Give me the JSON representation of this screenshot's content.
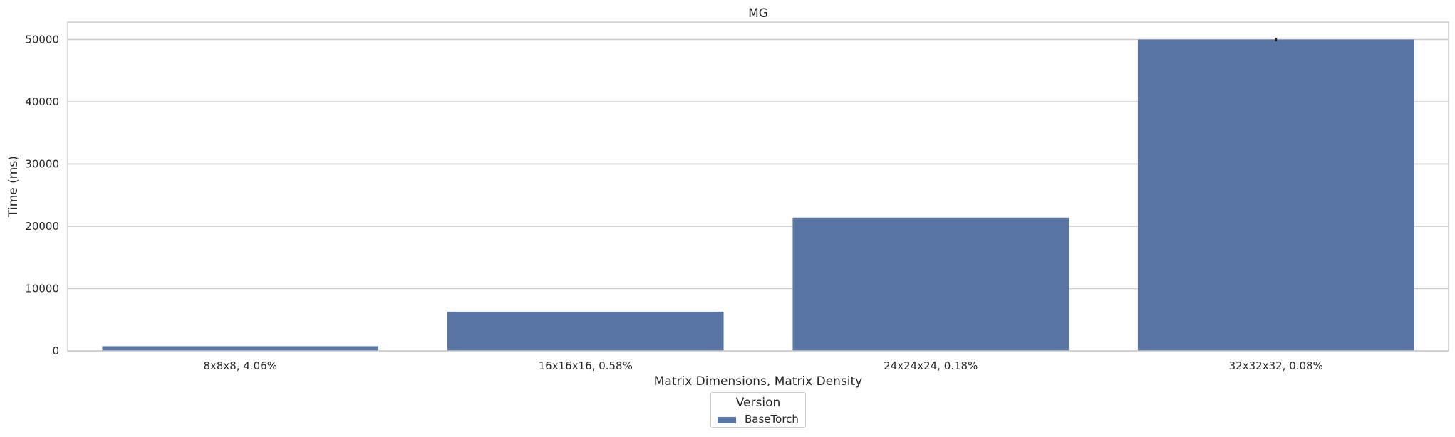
{
  "chart_data": {
    "type": "bar",
    "title": "MG",
    "xlabel": "Matrix Dimensions, Matrix Density",
    "ylabel": "Time (ms)",
    "categories": [
      "8x8x8, 4.06%",
      "16x16x16, 0.58%",
      "24x24x24, 0.18%",
      "32x32x32, 0.08%"
    ],
    "series": [
      {
        "name": "BaseTorch",
        "values": [
          750,
          6300,
          21400,
          50000
        ],
        "error": [
          0,
          0,
          0,
          300
        ]
      }
    ],
    "ylim": [
      0,
      52800
    ],
    "yticks": [
      0,
      10000,
      20000,
      30000,
      40000,
      50000
    ],
    "grid": true,
    "legend": {
      "title": "Version",
      "placement": "bottom-center"
    },
    "colors": {
      "BaseTorch": "#5975a4",
      "grid": "#cccccc",
      "errorbar": "#262626"
    }
  }
}
